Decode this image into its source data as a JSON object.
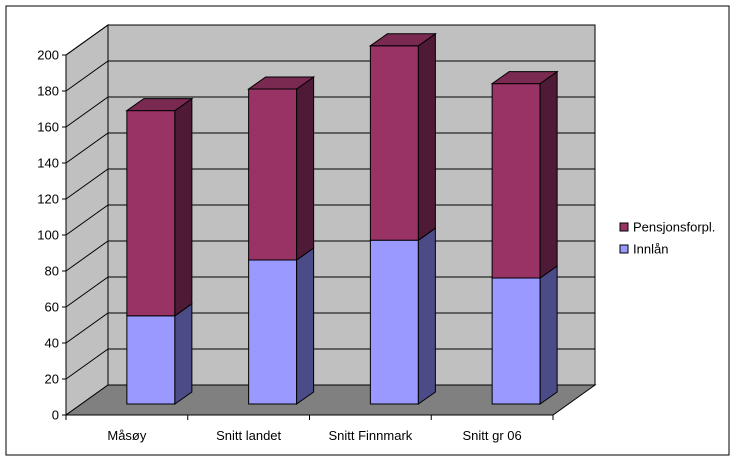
{
  "chart_data": {
    "type": "bar",
    "stacked": true,
    "three_d": true,
    "categories": [
      "Måsøy",
      "Snitt landet",
      "Snitt Finnmark",
      "Snitt gr 06"
    ],
    "series": [
      {
        "name": "Innlån",
        "values": [
          49,
          80,
          91,
          70
        ],
        "color": "#9999ff",
        "side_color": "#4b4b88",
        "top_color": "#7a7ad0"
      },
      {
        "name": "Pensjonsforpl.",
        "values": [
          114,
          95,
          108,
          108
        ],
        "color": "#993366",
        "side_color": "#4f1a35",
        "top_color": "#7a2951"
      }
    ],
    "ylim": [
      0,
      200
    ],
    "yticks": [
      0,
      20,
      40,
      60,
      80,
      100,
      120,
      140,
      160,
      180,
      200
    ],
    "grid": true,
    "legend_position": "right",
    "title": "",
    "xlabel": "",
    "ylabel": "",
    "colors": {
      "wall": "#c0c0c0",
      "floor": "#808080",
      "gridline": "#000000",
      "border": "#000000"
    }
  }
}
